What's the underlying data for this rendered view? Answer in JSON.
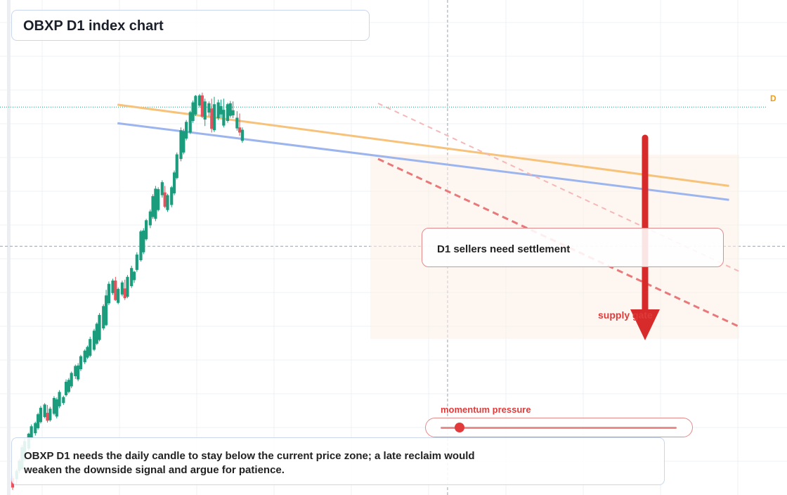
{
  "title": "OBXP D1 index chart",
  "signal_label": "D1 sellers need settlement",
  "supply_label": "supply gate",
  "note": "OBXP D1 needs the daily candle to stay below the current price zone; a late reclaim would weaken the downside signal and argue for patience.",
  "momentum": {
    "label": "momentum pressure",
    "level": 0.08
  },
  "price_marker": "D",
  "colors": {
    "up": "#1a9c7d",
    "down": "#e8505b",
    "orange_line": "#f7c27a",
    "blue_line": "#9db5ee",
    "accent": "#e23b3b",
    "marker": "#f39c12"
  },
  "chart_data": {
    "type": "candlestick",
    "title": "OBXP D1 index chart",
    "grid": true,
    "price_scale": [
      0,
      100
    ],
    "crosshair": {
      "x": 0.5828,
      "y": 53
    },
    "current_level": 83,
    "ohlc": [
      [
        0.0,
        3.0,
        3.5,
        0.5,
        1.0
      ],
      [
        0.0054,
        2.8,
        5.0,
        1.6,
        4.6
      ],
      [
        0.0089,
        4.6,
        7.2,
        4.1,
        6.8
      ],
      [
        0.0125,
        5.0,
        10.2,
        4.8,
        9.7
      ],
      [
        0.0161,
        7.0,
        11.5,
        6.6,
        11.0
      ],
      [
        0.0215,
        9.4,
        12.8,
        9.0,
        12.6
      ],
      [
        0.0251,
        11.8,
        14.6,
        11.3,
        14.2
      ],
      [
        0.0304,
        12.7,
        15.2,
        12.2,
        14.9
      ],
      [
        0.034,
        13.8,
        17.1,
        13.5,
        16.8
      ],
      [
        0.0376,
        15.1,
        18.6,
        14.8,
        18.2
      ],
      [
        0.043,
        16.2,
        19.2,
        15.9,
        18.9
      ],
      [
        0.0466,
        17.1,
        18.8,
        15.0,
        15.4
      ],
      [
        0.0502,
        15.5,
        18.4,
        15.2,
        18.0
      ],
      [
        0.0555,
        16.9,
        20.7,
        16.6,
        20.3
      ],
      [
        0.0591,
        16.3,
        20.4,
        15.9,
        20.0
      ],
      [
        0.0627,
        18.5,
        22.0,
        18.1,
        21.6
      ],
      [
        0.0681,
        19.2,
        20.8,
        18.8,
        20.5
      ],
      [
        0.0716,
        20.9,
        24.3,
        20.6,
        23.8
      ],
      [
        0.0752,
        21.6,
        24.6,
        21.3,
        24.2
      ],
      [
        0.0788,
        22.8,
        26.0,
        22.4,
        25.7
      ],
      [
        0.0841,
        25.0,
        27.5,
        24.4,
        27.2
      ],
      [
        0.0877,
        24.3,
        27.8,
        23.9,
        27.3
      ],
      [
        0.0913,
        26.5,
        29.6,
        26.1,
        29.3
      ],
      [
        0.0967,
        28.0,
        30.8,
        27.6,
        30.5
      ],
      [
        0.1003,
        29.0,
        31.6,
        28.7,
        31.3
      ],
      [
        0.1038,
        29.4,
        33.5,
        29.1,
        33.0
      ],
      [
        0.1092,
        30.7,
        35.2,
        30.4,
        34.8
      ],
      [
        0.1128,
        32.0,
        36.6,
        31.7,
        36.3
      ],
      [
        0.1163,
        32.8,
        38.6,
        32.5,
        38.2
      ],
      [
        0.1217,
        35.3,
        40.5,
        34.9,
        40.1
      ],
      [
        0.1253,
        36.0,
        43.6,
        35.8,
        42.4
      ],
      [
        0.1289,
        40.7,
        45.4,
        40.3,
        44.9
      ],
      [
        0.1342,
        42.9,
        46.0,
        42.5,
        45.6
      ],
      [
        0.1378,
        45.6,
        46.4,
        41.2,
        41.4
      ],
      [
        0.1414,
        40.8,
        44.1,
        40.5,
        43.8
      ],
      [
        0.1468,
        42.6,
        45.6,
        42.2,
        45.2
      ],
      [
        0.1504,
        43.9,
        45.8,
        41.4,
        41.8
      ],
      [
        0.1539,
        42.1,
        46.8,
        41.8,
        46.4
      ],
      [
        0.1593,
        44.4,
        48.8,
        44.0,
        48.3
      ],
      [
        0.1629,
        45.7,
        47.7,
        45.1,
        47.5
      ],
      [
        0.1665,
        47.9,
        51.7,
        47.5,
        51.2
      ],
      [
        0.1718,
        50.0,
        56.5,
        49.7,
        56.2
      ],
      [
        0.1754,
        51.7,
        56.9,
        51.3,
        56.4
      ],
      [
        0.179,
        54.5,
        58.9,
        54.2,
        58.6
      ],
      [
        0.1844,
        57.5,
        60.9,
        56.9,
        60.5
      ],
      [
        0.1879,
        59.3,
        64.2,
        58.9,
        63.8
      ],
      [
        0.1915,
        58.9,
        66.0,
        58.4,
        65.4
      ],
      [
        0.1951,
        60.8,
        65.7,
        60.5,
        65.3
      ],
      [
        0.2004,
        64.0,
        67.2,
        63.5,
        66.8
      ],
      [
        0.204,
        64.6,
        66.0,
        61.2,
        61.5
      ],
      [
        0.2076,
        60.8,
        64.3,
        60.4,
        64.0
      ],
      [
        0.213,
        61.9,
        66.0,
        61.4,
        65.7
      ],
      [
        0.2166,
        64.4,
        69.3,
        64.0,
        68.9
      ],
      [
        0.2201,
        67.7,
        73.2,
        67.4,
        72.8
      ],
      [
        0.2255,
        71.8,
        78.6,
        71.3,
        78.0
      ],
      [
        0.2291,
        73.2,
        78.3,
        72.8,
        77.8
      ],
      [
        0.2327,
        76.2,
        80.2,
        75.8,
        79.8
      ],
      [
        0.238,
        77.5,
        82.2,
        77.2,
        81.9
      ],
      [
        0.2416,
        80.0,
        84.4,
        79.6,
        84.0
      ],
      [
        0.2452,
        81.4,
        85.6,
        81.1,
        85.4
      ],
      [
        0.2505,
        83.3,
        85.8,
        82.9,
        85.5
      ],
      [
        0.2541,
        85.5,
        86.1,
        80.6,
        80.9
      ],
      [
        0.2577,
        80.3,
        84.8,
        78.9,
        84.2
      ],
      [
        0.2631,
        81.8,
        84.2,
        81.0,
        83.8
      ],
      [
        0.2667,
        82.7,
        84.8,
        77.5,
        78.3
      ],
      [
        0.2702,
        78.0,
        85.2,
        77.6,
        83.6
      ],
      [
        0.2756,
        80.6,
        84.6,
        80.2,
        84.0
      ],
      [
        0.2792,
        81.4,
        84.6,
        80.7,
        83.2
      ],
      [
        0.2828,
        79.0,
        84.8,
        78.6,
        82.4
      ],
      [
        0.2881,
        80.0,
        83.9,
        79.6,
        83.6
      ],
      [
        0.2917,
        81.1,
        84.3,
        80.7,
        83.8
      ],
      [
        0.2953,
        81.2,
        84.2,
        80.6,
        82.3
      ],
      [
        0.3007,
        78.4,
        82.1,
        77.9,
        80.7
      ],
      [
        0.3042,
        78.6,
        81.6,
        76.8,
        77.5
      ],
      [
        0.3078,
        75.7,
        78.6,
        75.3,
        78.1
      ]
    ],
    "lines": [
      {
        "name": "",
        "color": "orange_line",
        "from": [
          0.1405,
          83.5
        ],
        "to": [
          0.96,
          66.0
        ]
      },
      {
        "name": "",
        "color": "blue_line",
        "from": [
          0.1405,
          79.5
        ],
        "to": [
          0.96,
          63.0
        ]
      }
    ]
  }
}
